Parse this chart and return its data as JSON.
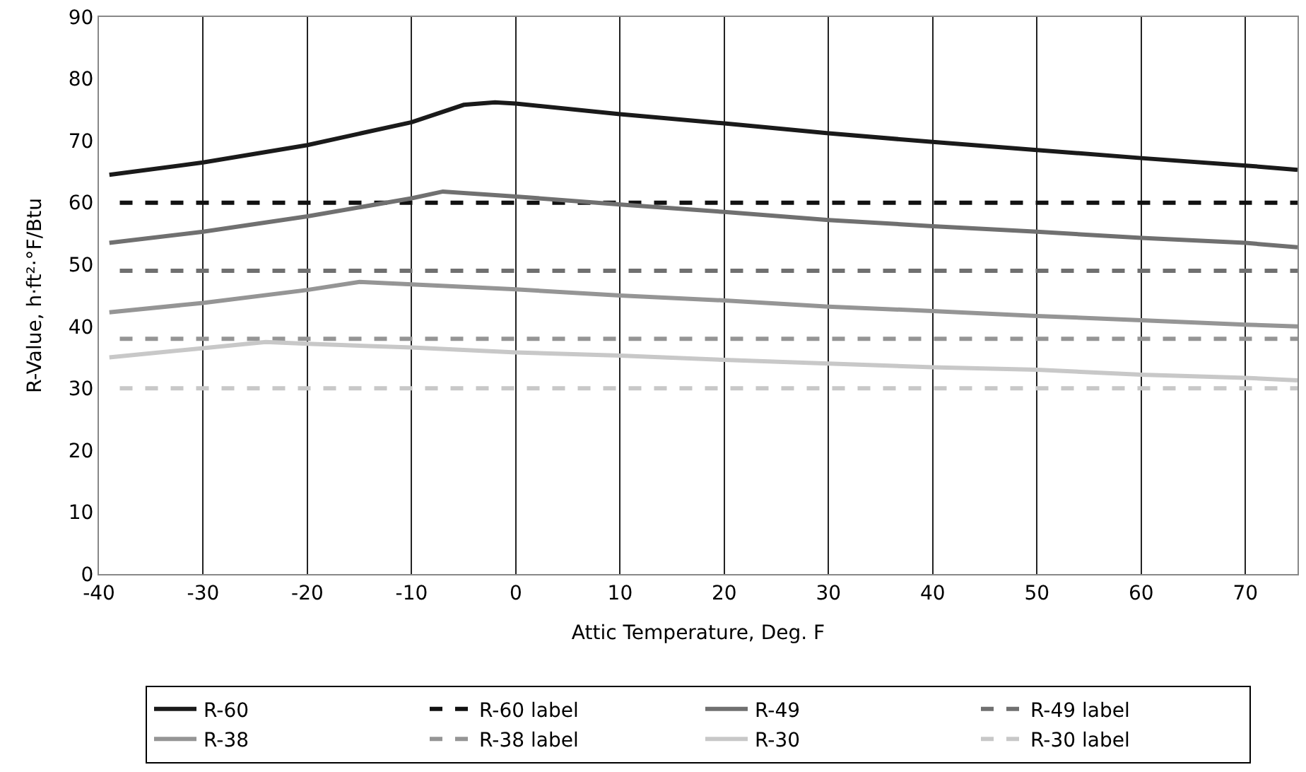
{
  "chart_data": {
    "type": "line",
    "xlabel": "Attic Temperature, Deg. F",
    "ylabel": "R-Value, h·ft²·°F/Btu",
    "xlim": [
      -40,
      75
    ],
    "xticks": [
      -40,
      -30,
      -20,
      -10,
      0,
      10,
      20,
      30,
      40,
      50,
      60,
      70
    ],
    "ylim": [
      0,
      90
    ],
    "yticks": [
      0,
      10,
      20,
      30,
      40,
      50,
      60,
      70,
      80,
      90
    ],
    "grid": "x",
    "legend": "bottom",
    "line_style": "solid",
    "series": [
      {
        "name": "R-60",
        "color": "#1a1a1a",
        "x": [
          -39,
          -30,
          -20,
          -10,
          -5,
          -2,
          0,
          10,
          20,
          30,
          40,
          50,
          60,
          70,
          75
        ],
        "values": [
          64.5,
          66.5,
          69.3,
          73,
          75.8,
          76.2,
          76,
          74.3,
          72.8,
          71.2,
          69.8,
          68.5,
          67.2,
          66,
          65.3
        ]
      },
      {
        "name": "R-60 label",
        "color": "#111111",
        "line_style": "dashed",
        "x": [
          -38,
          75
        ],
        "values": [
          60,
          60
        ]
      },
      {
        "name": "R-49",
        "color": "#707070",
        "x": [
          -39,
          -30,
          -20,
          -10,
          -7,
          0,
          10,
          20,
          30,
          40,
          50,
          60,
          70,
          75
        ],
        "values": [
          53.5,
          55.3,
          57.8,
          60.7,
          61.8,
          61,
          59.7,
          58.5,
          57.2,
          56.2,
          55.3,
          54.3,
          53.5,
          52.8
        ]
      },
      {
        "name": "R-49 label",
        "color": "#707070",
        "line_style": "dashed",
        "x": [
          -38,
          75
        ],
        "values": [
          49,
          49
        ]
      },
      {
        "name": "R-38",
        "color": "#959595",
        "x": [
          -39,
          -30,
          -20,
          -15,
          -10,
          0,
          10,
          20,
          30,
          40,
          50,
          60,
          70,
          75
        ],
        "values": [
          42.3,
          43.8,
          45.9,
          47.2,
          46.8,
          46,
          45,
          44.2,
          43.2,
          42.5,
          41.7,
          41,
          40.3,
          40
        ]
      },
      {
        "name": "R-38 label",
        "color": "#959595",
        "line_style": "dashed",
        "x": [
          -38,
          75
        ],
        "values": [
          38,
          38
        ]
      },
      {
        "name": "R-30",
        "color": "#c8c8c8",
        "x": [
          -39,
          -30,
          -24,
          -20,
          -10,
          0,
          10,
          20,
          30,
          40,
          50,
          60,
          70,
          75
        ],
        "values": [
          35,
          36.5,
          37.5,
          37.2,
          36.6,
          35.8,
          35.3,
          34.6,
          34,
          33.4,
          33,
          32.2,
          31.7,
          31.3
        ]
      },
      {
        "name": "R-30 label",
        "color": "#c8c8c8",
        "line_style": "dashed",
        "x": [
          -38,
          75
        ],
        "values": [
          30,
          30
        ]
      }
    ]
  }
}
